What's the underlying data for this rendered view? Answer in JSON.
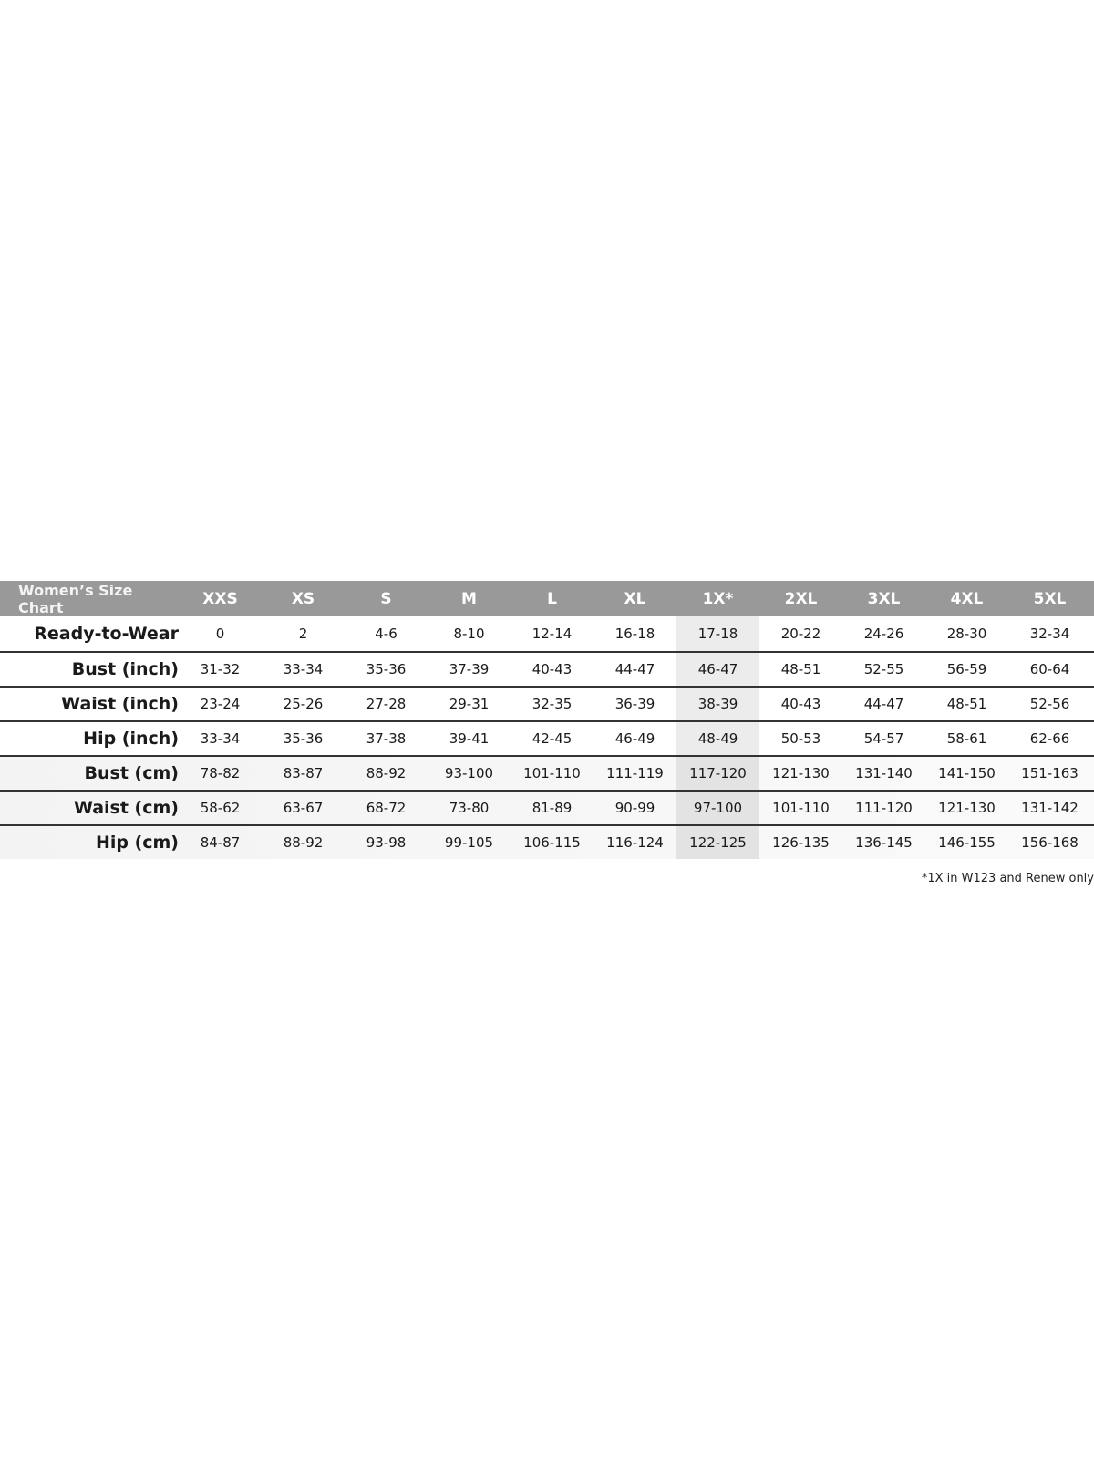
{
  "title": "Women’s Size Chart",
  "sizes": [
    "XXS",
    "XS",
    "S",
    "M",
    "L",
    "XL",
    "1X*",
    "2XL",
    "3XL",
    "4XL",
    "5XL"
  ],
  "rows": [
    {
      "label": "Ready-to-Wear",
      "values": [
        "0",
        "2",
        "4-6",
        "8-10",
        "12-14",
        "16-18",
        "17-18",
        "20-22",
        "24-26",
        "28-30",
        "32-34"
      ]
    },
    {
      "label": "Bust (inch)",
      "values": [
        "31-32",
        "33-34",
        "35-36",
        "37-39",
        "40-43",
        "44-47",
        "46-47",
        "48-51",
        "52-55",
        "56-59",
        "60-64"
      ]
    },
    {
      "label": "Waist (inch)",
      "values": [
        "23-24",
        "25-26",
        "27-28",
        "29-31",
        "32-35",
        "36-39",
        "38-39",
        "40-43",
        "44-47",
        "48-51",
        "52-56"
      ]
    },
    {
      "label": "Hip (inch)",
      "values": [
        "33-34",
        "35-36",
        "37-38",
        "39-41",
        "42-45",
        "46-49",
        "48-49",
        "50-53",
        "54-57",
        "58-61",
        "62-66"
      ]
    },
    {
      "label": "Bust (cm)",
      "values": [
        "78-82",
        "83-87",
        "88-92",
        "93-100",
        "101-110",
        "111-119",
        "117-120",
        "121-130",
        "131-140",
        "141-150",
        "151-163"
      ]
    },
    {
      "label": "Waist (cm)",
      "values": [
        "58-62",
        "63-67",
        "68-72",
        "73-80",
        "81-89",
        "90-99",
        "97-100",
        "101-110",
        "111-120",
        "121-130",
        "131-142"
      ]
    },
    {
      "label": "Hip (cm)",
      "values": [
        "84-87",
        "88-92",
        "93-98",
        "99-105",
        "106-115",
        "116-124",
        "122-125",
        "126-135",
        "136-145",
        "146-155",
        "156-168"
      ]
    }
  ],
  "footnote": "*1X in W123 and Renew only",
  "colors": {
    "header_bg": "#999999",
    "highlight_column": "#ececec"
  }
}
